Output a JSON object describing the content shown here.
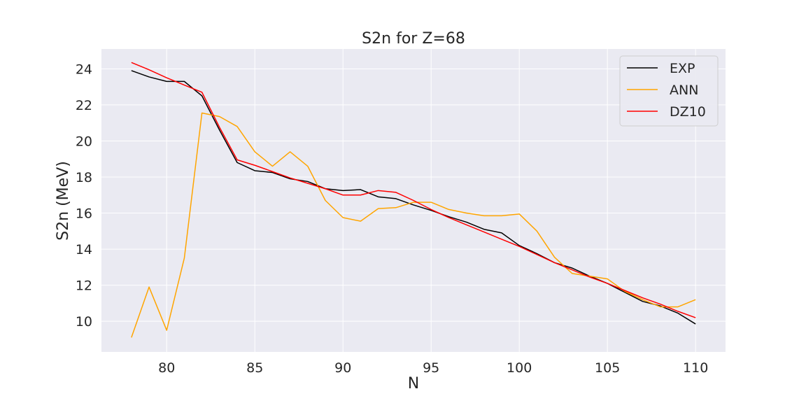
{
  "chart_data": {
    "type": "line",
    "title": "S2n for Z=68",
    "xlabel": "N",
    "ylabel": "S2n (MeV)",
    "xlim": [
      76.3,
      111.7
    ],
    "ylim": [
      8.3,
      25.1
    ],
    "xticks": [
      80,
      85,
      90,
      95,
      100,
      105,
      110
    ],
    "yticks": [
      10,
      12,
      14,
      16,
      18,
      20,
      22,
      24
    ],
    "grid": true,
    "legend_position": "top-right",
    "x": [
      78,
      79,
      80,
      81,
      82,
      83,
      84,
      85,
      86,
      87,
      88,
      89,
      90,
      91,
      92,
      93,
      94,
      95,
      96,
      97,
      98,
      99,
      100,
      101,
      102,
      103,
      104,
      105,
      106,
      107,
      108,
      109,
      110
    ],
    "series": [
      {
        "name": "EXP",
        "color": "#000000",
        "values": [
          23.9,
          23.55,
          23.3,
          23.3,
          22.5,
          20.6,
          18.8,
          18.35,
          18.25,
          17.9,
          17.75,
          17.35,
          17.25,
          17.3,
          16.9,
          16.8,
          16.45,
          16.15,
          15.8,
          15.5,
          15.1,
          14.9,
          14.2,
          13.75,
          13.25,
          12.95,
          12.5,
          12.1,
          11.6,
          11.1,
          10.85,
          10.45,
          9.85
        ]
      },
      {
        "name": "ANN",
        "color": "#FFA500",
        "values": [
          9.1,
          11.9,
          9.5,
          13.5,
          21.55,
          21.35,
          20.8,
          19.4,
          18.6,
          19.4,
          18.6,
          16.7,
          15.75,
          15.55,
          16.25,
          16.3,
          16.6,
          16.6,
          16.2,
          16.0,
          15.85,
          15.85,
          15.95,
          15.0,
          13.55,
          12.65,
          12.5,
          12.35,
          11.65,
          11.2,
          10.8,
          10.8,
          11.2
        ]
      },
      {
        "name": "DZ10",
        "color": "#FF0000",
        "values": [
          24.35,
          23.95,
          23.5,
          23.1,
          22.7,
          20.75,
          18.95,
          18.65,
          18.3,
          17.95,
          17.65,
          17.35,
          17.0,
          17.0,
          17.25,
          17.15,
          16.7,
          16.2,
          15.75,
          15.35,
          14.95,
          14.55,
          14.15,
          13.7,
          13.25,
          12.85,
          12.45,
          12.1,
          11.7,
          11.3,
          10.95,
          10.55,
          10.2
        ]
      }
    ]
  }
}
